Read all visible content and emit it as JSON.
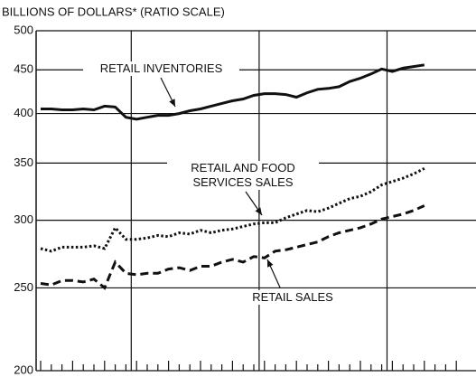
{
  "chart_data": {
    "type": "line",
    "title": "BILLIONS OF DOLLARS* (RATIO SCALE)",
    "yscale": "log",
    "ylim": [
      200,
      500
    ],
    "yticks": [
      200,
      250,
      300,
      350,
      400,
      450,
      500
    ],
    "grid": true,
    "categories": [
      null,
      null,
      null,
      null,
      null,
      null,
      null,
      null,
      null,
      null,
      null,
      null,
      null,
      null,
      null,
      null,
      null,
      null,
      null,
      null,
      null,
      null,
      null,
      null,
      null,
      null,
      null,
      null,
      null,
      null,
      null,
      null,
      null,
      null,
      null,
      null,
      null
    ],
    "series": [
      {
        "name": "RETAIL INVENTORIES",
        "color": "#111111",
        "style": "solid",
        "values": [
          405,
          405,
          404,
          404,
          405,
          404,
          408,
          407,
          396,
          394,
          396,
          398,
          398,
          400,
          403,
          405,
          408,
          411,
          414,
          416,
          420,
          422,
          422,
          421,
          418,
          423,
          427,
          428,
          430,
          436,
          440,
          445,
          451,
          448,
          452,
          454,
          456
        ]
      },
      {
        "name": "RETAIL AND FOOD SERVICES SALES",
        "color": "#111111",
        "style": "dotted",
        "values": [
          278,
          276,
          279,
          279,
          279,
          280,
          278,
          294,
          285,
          285,
          286,
          288,
          287,
          290,
          289,
          292,
          290,
          292,
          293,
          295,
          297,
          298,
          298,
          302,
          305,
          308,
          307,
          310,
          314,
          318,
          320,
          324,
          330,
          333,
          336,
          340,
          345
        ]
      },
      {
        "name": "RETAIL SALES",
        "color": "#111111",
        "style": "dashed",
        "values": [
          253,
          252,
          255,
          255,
          254,
          256,
          250,
          268,
          260,
          259,
          260,
          260,
          263,
          264,
          262,
          265,
          265,
          268,
          270,
          268,
          272,
          271,
          276,
          277,
          279,
          281,
          283,
          287,
          290,
          292,
          294,
          297,
          301,
          303,
          305,
          308,
          312
        ]
      }
    ]
  }
}
